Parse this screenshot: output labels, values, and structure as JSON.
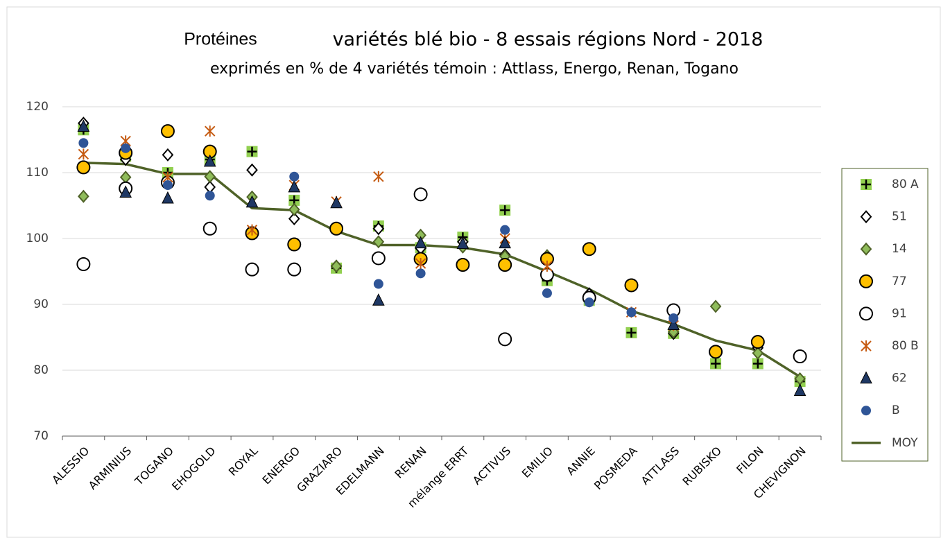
{
  "chart_data": {
    "type": "line",
    "title": "Protéines",
    "subtitle": "variétés blé bio - 8 essais régions Nord - 2018",
    "subtitle2": "exprimés en % de 4 variétés témoin : Attlass, Energo, Renan, Togano",
    "categories": [
      "ALESSIO",
      "ARMINIUS",
      "TOGANO",
      "EHOGOLD",
      "ROYAL",
      "ENERGO",
      "GRAZIARO",
      "EDELMANN",
      "RENAN",
      "mélange ERRT",
      "ACTIVUS",
      "EMILIO",
      "ANNIE",
      "POSMEDA",
      "ATTLASS",
      "RUBISKO",
      "FILON",
      "CHEVIGNON"
    ],
    "ylim": [
      70,
      120
    ],
    "yticks": [
      70,
      80,
      90,
      100,
      110,
      120
    ],
    "grid": true,
    "legend": "right",
    "series": [
      {
        "name": "80 A",
        "color": "#92d050",
        "marker": "plus",
        "values": [
          116.5,
          112.5,
          110,
          112,
          113.2,
          105.8,
          95.5,
          101.9,
          98.6,
          100.2,
          104.3,
          93.6,
          90.6,
          85.7,
          85.6,
          81,
          81,
          78.3
        ]
      },
      {
        "name": "51",
        "color": "#ffffff",
        "marker": "diamond",
        "values": [
          117.5,
          112,
          112.7,
          107.8,
          110.4,
          103,
          95.8,
          101.5,
          98.5,
          99.5,
          97.5,
          94.2,
          91.6,
          null,
          85.6,
          null,
          83.4,
          null
        ]
      },
      {
        "name": "14",
        "color": "#8fbc5a",
        "marker": "diamond",
        "values": [
          106.4,
          109.3,
          108.7,
          109.4,
          106.3,
          104.4,
          95.8,
          99.5,
          100.5,
          98.7,
          97.3,
          97.4,
          90.5,
          null,
          85.8,
          89.7,
          82.6,
          78.7
        ]
      },
      {
        "name": "77",
        "color": "#ffc000",
        "marker": "circle",
        "values": [
          110.8,
          113,
          116.3,
          113.2,
          100.8,
          99.1,
          101.5,
          null,
          96.9,
          96,
          96,
          96.9,
          98.4,
          92.9,
          null,
          82.8,
          84.3,
          null
        ]
      },
      {
        "name": "91",
        "color": "#ffffff",
        "marker": "circle",
        "values": [
          96.1,
          107.6,
          108.5,
          101.5,
          95.3,
          95.3,
          null,
          97,
          106.7,
          null,
          84.7,
          94.5,
          91,
          null,
          89.1,
          null,
          null,
          82.1
        ]
      },
      {
        "name": "80 B",
        "color": "#c55a11",
        "marker": "star",
        "values": [
          112.8,
          114.8,
          109.3,
          116.3,
          101.3,
          108.1,
          105.6,
          109.4,
          96.2,
          null,
          100,
          95.8,
          null,
          88.8,
          86.8,
          null,
          null,
          null
        ]
      },
      {
        "name": "62",
        "color": "#1f3864",
        "marker": "triangle",
        "values": [
          117,
          107,
          106.1,
          111.7,
          105.5,
          107.8,
          105.4,
          90.6,
          99.3,
          99.2,
          99.3,
          null,
          null,
          null,
          86.9,
          null,
          null,
          76.9
        ]
      },
      {
        "name": "B",
        "color": "#2f5597",
        "marker": "dot",
        "values": [
          114.5,
          113.7,
          108.1,
          106.5,
          null,
          109.4,
          null,
          93.1,
          94.7,
          null,
          101.3,
          91.7,
          90.3,
          88.8,
          87.9,
          null,
          null,
          null
        ]
      },
      {
        "name": "MOY",
        "color": "#4f6228",
        "marker": "none",
        "values": [
          111.5,
          111.3,
          109.8,
          109.8,
          104.6,
          104.3,
          101.1,
          99,
          99,
          98.6,
          97.6,
          95,
          92.3,
          89,
          87,
          84.5,
          83,
          79
        ]
      }
    ]
  }
}
